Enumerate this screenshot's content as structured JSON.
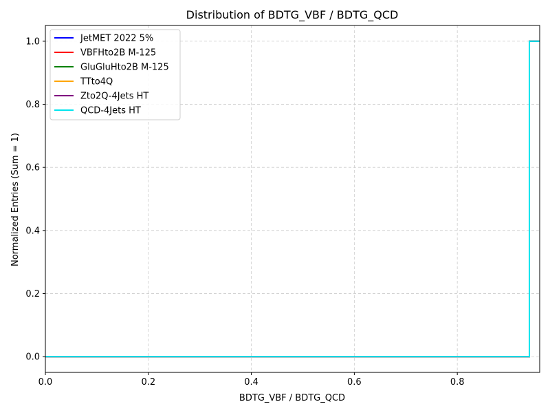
{
  "chart_data": {
    "type": "line",
    "title": "Distribution of BDTG_VBF / BDTG_QCD",
    "xlabel": "BDTG_VBF / BDTG_QCD",
    "ylabel": "Normalized Entries (Sum = 1)",
    "xlim": [
      0.0,
      0.96
    ],
    "ylim": [
      -0.05,
      1.05
    ],
    "x_ticks": [
      "0.0",
      "0.2",
      "0.4",
      "0.6",
      "0.8"
    ],
    "y_ticks": [
      "0.0",
      "0.2",
      "0.4",
      "0.6",
      "0.8",
      "1.0"
    ],
    "grid": true,
    "legend_position": "top-left",
    "step_x": [
      0.0,
      0.94,
      0.94,
      0.96
    ],
    "step_y": [
      0.0,
      0.0,
      1.0,
      1.0
    ],
    "series": [
      {
        "name": "JetMET 2022 5%",
        "color": "#0000ff"
      },
      {
        "name": "VBFHto2B M-125",
        "color": "#ff0000"
      },
      {
        "name": "GluGluHto2B M-125",
        "color": "#008000"
      },
      {
        "name": "TTto4Q",
        "color": "#ffa500"
      },
      {
        "name": "Zto2Q-4Jets HT",
        "color": "#800080"
      },
      {
        "name": "QCD-4Jets HT",
        "color": "#00e5ee"
      }
    ]
  }
}
